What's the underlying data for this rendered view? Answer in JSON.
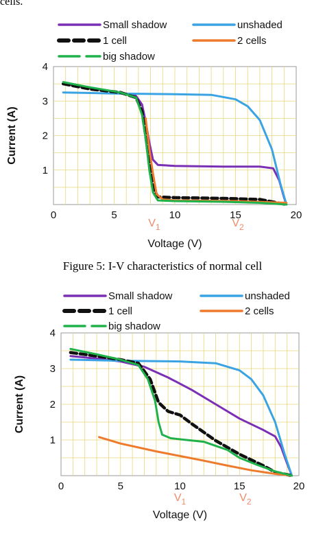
{
  "top_text": "cells.",
  "figure5_caption": "Figure 5: I-V characteristics of normal cell",
  "colors": {
    "small_shadow": "#7a2fb5",
    "unshaded": "#3aa3e3",
    "one_cell": "#111111",
    "two_cells": "#ee7a2c",
    "big_shadow": "#1fb24a",
    "v_markers": "#f08a6a",
    "grid": "#e6d77a"
  },
  "chart_data": [
    {
      "type": "line",
      "xlabel": "Voltage (V)",
      "ylabel": "Current (A)",
      "xlim": [
        0,
        20
      ],
      "ylim": [
        0,
        4
      ],
      "xticks": [
        "0",
        "5",
        "10",
        "15",
        "20"
      ],
      "yticks": [
        "1",
        "2",
        "3",
        "4"
      ],
      "vmarkers": [
        {
          "label": "V",
          "sub": "1",
          "x": 8.3
        },
        {
          "label": "V",
          "sub": "2",
          "x": 15.2
        }
      ],
      "legend": [
        "Small shadow",
        "unshaded",
        "1 cell",
        "2 cells",
        "big shadow"
      ],
      "series": [
        {
          "name": "Small shadow",
          "key": "small_shadow",
          "dash": "",
          "points": [
            [
              0.8,
              3.5
            ],
            [
              3,
              3.38
            ],
            [
              5.5,
              3.25
            ],
            [
              6.8,
              3.15
            ],
            [
              7.3,
              2.9
            ],
            [
              7.6,
              2.4
            ],
            [
              7.9,
              1.8
            ],
            [
              8.2,
              1.3
            ],
            [
              8.6,
              1.15
            ],
            [
              10,
              1.12
            ],
            [
              14,
              1.1
            ],
            [
              17,
              1.1
            ],
            [
              18.1,
              1.05
            ],
            [
              18.6,
              0.7
            ],
            [
              19,
              0.2
            ],
            [
              19.2,
              0
            ]
          ]
        },
        {
          "name": "unshaded",
          "key": "unshaded",
          "dash": "",
          "points": [
            [
              0.8,
              3.25
            ],
            [
              5,
              3.22
            ],
            [
              10,
              3.2
            ],
            [
              13,
              3.18
            ],
            [
              15,
              3.05
            ],
            [
              16,
              2.85
            ],
            [
              17,
              2.45
            ],
            [
              18,
              1.6
            ],
            [
              18.7,
              0.6
            ],
            [
              19.2,
              0
            ]
          ]
        },
        {
          "name": "1 cell",
          "key": "one_cell",
          "dash": "9 5",
          "points": [
            [
              0.8,
              3.5
            ],
            [
              3,
              3.35
            ],
            [
              5.5,
              3.25
            ],
            [
              6.8,
              3.1
            ],
            [
              7.3,
              2.7
            ],
            [
              7.6,
              2.0
            ],
            [
              7.9,
              1.2
            ],
            [
              8.2,
              0.5
            ],
            [
              8.6,
              0.22
            ],
            [
              10,
              0.2
            ],
            [
              14,
              0.18
            ],
            [
              17,
              0.15
            ],
            [
              19.2,
              0
            ]
          ]
        },
        {
          "name": "2 cells",
          "key": "two_cells",
          "dash": "",
          "points": [
            [
              7.6,
              2.5
            ],
            [
              7.9,
              1.6
            ],
            [
              8.2,
              0.9
            ],
            [
              8.5,
              0.3
            ],
            [
              9,
              0.15
            ],
            [
              10,
              0.12
            ],
            [
              15,
              0.1
            ],
            [
              19.2,
              0.05
            ]
          ]
        },
        {
          "name": "big shadow",
          "key": "big_shadow",
          "dash": "",
          "points": [
            [
              0.8,
              3.55
            ],
            [
              3,
              3.4
            ],
            [
              5.5,
              3.25
            ],
            [
              6.8,
              3.1
            ],
            [
              7.3,
              2.6
            ],
            [
              7.6,
              1.9
            ],
            [
              7.9,
              1.0
            ],
            [
              8.2,
              0.35
            ],
            [
              8.6,
              0.12
            ],
            [
              10,
              0.1
            ],
            [
              14,
              0.08
            ],
            [
              17,
              0.05
            ],
            [
              19.2,
              0
            ]
          ]
        }
      ]
    },
    {
      "type": "line",
      "xlabel": "Voltage (V)",
      "ylabel": "Current (A)",
      "xlim": [
        0,
        20
      ],
      "ylim": [
        0,
        4
      ],
      "xticks": [
        "0",
        "5",
        "10",
        "15",
        "20"
      ],
      "yticks": [
        "1",
        "2",
        "3",
        "4"
      ],
      "vmarkers": [
        {
          "label": "V",
          "sub": "1",
          "x": 10.0
        },
        {
          "label": "V",
          "sub": "2",
          "x": 15.5
        }
      ],
      "legend": [
        "Small shadow",
        "unshaded",
        "1 cell",
        "2 cells",
        "big shadow"
      ],
      "series": [
        {
          "name": "Small shadow",
          "key": "small_shadow",
          "dash": "",
          "points": [
            [
              0.8,
              3.35
            ],
            [
              3,
              3.28
            ],
            [
              5,
              3.2
            ],
            [
              7,
              3.05
            ],
            [
              9,
              2.75
            ],
            [
              11,
              2.4
            ],
            [
              13,
              2.0
            ],
            [
              15,
              1.6
            ],
            [
              17,
              1.28
            ],
            [
              18,
              1.1
            ],
            [
              18.5,
              0.8
            ],
            [
              19,
              0.35
            ],
            [
              19.4,
              0
            ]
          ]
        },
        {
          "name": "unshaded",
          "key": "unshaded",
          "dash": "",
          "points": [
            [
              0.8,
              3.25
            ],
            [
              5,
              3.22
            ],
            [
              10,
              3.2
            ],
            [
              13,
              3.15
            ],
            [
              15,
              2.95
            ],
            [
              16,
              2.7
            ],
            [
              17,
              2.25
            ],
            [
              18,
              1.5
            ],
            [
              18.8,
              0.6
            ],
            [
              19.4,
              0
            ]
          ]
        },
        {
          "name": "1 cell",
          "key": "one_cell",
          "dash": "9 5",
          "points": [
            [
              0.8,
              3.45
            ],
            [
              3,
              3.35
            ],
            [
              5,
              3.25
            ],
            [
              6.5,
              3.15
            ],
            [
              7.5,
              2.7
            ],
            [
              8.2,
              2.05
            ],
            [
              9,
              1.8
            ],
            [
              10,
              1.7
            ],
            [
              11,
              1.45
            ],
            [
              13,
              0.98
            ],
            [
              15,
              0.6
            ],
            [
              17,
              0.28
            ],
            [
              18,
              0.1
            ],
            [
              19.4,
              0
            ]
          ]
        },
        {
          "name": "2 cells",
          "key": "two_cells",
          "dash": "",
          "points": [
            [
              3.2,
              1.08
            ],
            [
              5,
              0.9
            ],
            [
              8,
              0.68
            ],
            [
              10,
              0.55
            ],
            [
              12,
              0.42
            ],
            [
              14,
              0.28
            ],
            [
              16,
              0.15
            ],
            [
              18,
              0.05
            ],
            [
              19.4,
              0
            ]
          ]
        },
        {
          "name": "big shadow",
          "key": "big_shadow",
          "dash": "",
          "points": [
            [
              0.8,
              3.55
            ],
            [
              3,
              3.4
            ],
            [
              5,
              3.25
            ],
            [
              6.5,
              3.1
            ],
            [
              7.3,
              2.7
            ],
            [
              7.9,
              2.1
            ],
            [
              8.2,
              1.5
            ],
            [
              8.5,
              1.15
            ],
            [
              9.2,
              1.05
            ],
            [
              10,
              1.02
            ],
            [
              12,
              0.95
            ],
            [
              14,
              0.72
            ],
            [
              15,
              0.5
            ],
            [
              16.5,
              0.3
            ],
            [
              18,
              0.12
            ],
            [
              19.4,
              0
            ]
          ]
        }
      ]
    }
  ]
}
